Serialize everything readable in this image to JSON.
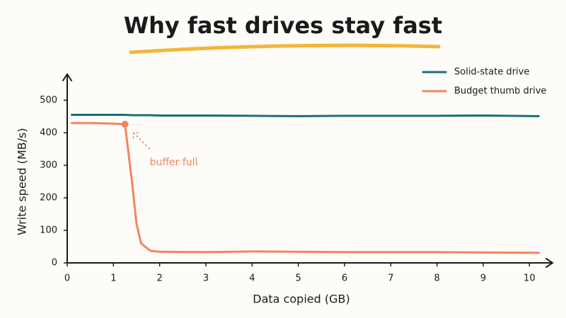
{
  "chart_data": {
    "type": "line",
    "title": "Why fast drives stay fast",
    "x_label": "Data copied (GB)",
    "y_label": "Write speed (MB/s)",
    "x": [
      0.1,
      0.5,
      1.0,
      1.25,
      1.4,
      1.5,
      1.6,
      1.8,
      2,
      3,
      4,
      5,
      6,
      7,
      8,
      9,
      10.2
    ],
    "series": [
      {
        "name": "Solid-state drive",
        "color": "#17707a",
        "values": [
          455,
          455,
          455,
          455,
          454,
          454,
          454,
          454,
          453,
          453,
          452,
          451,
          452,
          452,
          452,
          453,
          451
        ]
      },
      {
        "name": "Budget thumb drive",
        "color": "#f4845f",
        "values": [
          430,
          430,
          428,
          426,
          250,
          120,
          60,
          37,
          34,
          33,
          35,
          34,
          33,
          33,
          33,
          32,
          31
        ]
      }
    ],
    "annotation": {
      "text": "buffer full",
      "x": 1.25,
      "y": 426,
      "series": 1
    },
    "xlim": [
      0,
      10.5
    ],
    "ylim": [
      0,
      580
    ],
    "xticks": [
      0,
      1,
      2,
      3,
      4,
      5,
      6,
      7,
      8,
      9,
      10
    ],
    "yticks": [
      0,
      100,
      200,
      300,
      400,
      500
    ],
    "grid": false,
    "legend": "top-right"
  }
}
